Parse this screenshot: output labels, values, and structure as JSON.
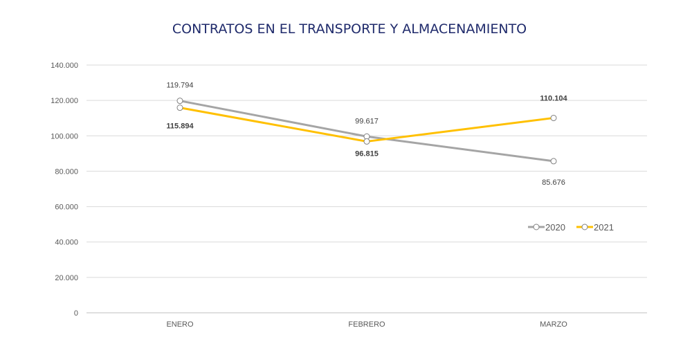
{
  "chart_data": {
    "type": "line",
    "title": "CONTRATOS EN EL TRANSPORTE Y ALMACENAMIENTO",
    "categories": [
      "ENERO",
      "FEBRERO",
      "MARZO"
    ],
    "ylim": [
      0,
      140000
    ],
    "yticks": [
      0,
      20000,
      40000,
      60000,
      80000,
      100000,
      120000,
      140000
    ],
    "ytick_labels": [
      "0",
      "20.000",
      "40.000",
      "60.000",
      "80.000",
      "100.000",
      "120.000",
      "140.000"
    ],
    "grid": true,
    "legend": "right",
    "series": [
      {
        "name": "2020",
        "color": "#a5a5a5",
        "values": [
          119794,
          99617,
          85676
        ],
        "labels": [
          "119.794",
          "99.617",
          "85.676"
        ]
      },
      {
        "name": "2021",
        "color": "#ffc000",
        "values": [
          115894,
          96815,
          110104
        ],
        "labels": [
          "115.894",
          "96.815",
          "110.104"
        ]
      }
    ]
  }
}
